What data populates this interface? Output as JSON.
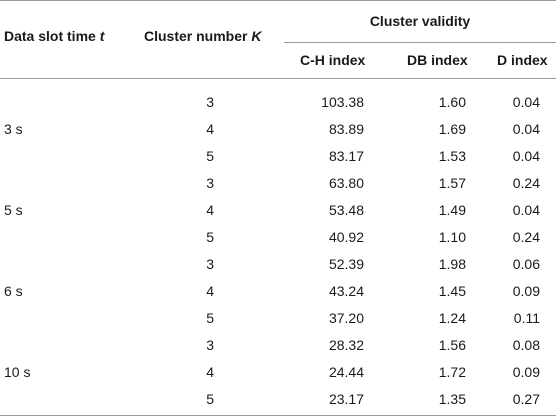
{
  "table": {
    "headers": {
      "data_slot_time": "Data slot time",
      "data_slot_var": "t",
      "cluster_number": "Cluster number",
      "cluster_number_var": "K",
      "cluster_validity": "Cluster validity",
      "ch_index": "C-H index",
      "db_index": "DB index",
      "d_index": "D index"
    },
    "groups": [
      {
        "time": "3 s",
        "rows": [
          {
            "k": "3",
            "ch": "103.38",
            "db": "1.60",
            "d": "0.04"
          },
          {
            "k": "4",
            "ch": "83.89",
            "db": "1.69",
            "d": "0.04"
          },
          {
            "k": "5",
            "ch": "83.17",
            "db": "1.53",
            "d": "0.04"
          }
        ]
      },
      {
        "time": "5 s",
        "rows": [
          {
            "k": "3",
            "ch": "63.80",
            "db": "1.57",
            "d": "0.24"
          },
          {
            "k": "4",
            "ch": "53.48",
            "db": "1.49",
            "d": "0.04"
          },
          {
            "k": "5",
            "ch": "40.92",
            "db": "1.10",
            "d": "0.24"
          }
        ]
      },
      {
        "time": "6 s",
        "rows": [
          {
            "k": "3",
            "ch": "52.39",
            "db": "1.98",
            "d": "0.06"
          },
          {
            "k": "4",
            "ch": "43.24",
            "db": "1.45",
            "d": "0.09"
          },
          {
            "k": "5",
            "ch": "37.20",
            "db": "1.24",
            "d": "0.11"
          }
        ]
      },
      {
        "time": "10 s",
        "rows": [
          {
            "k": "3",
            "ch": "28.32",
            "db": "1.56",
            "d": "0.08"
          },
          {
            "k": "4",
            "ch": "24.44",
            "db": "1.72",
            "d": "0.09"
          },
          {
            "k": "5",
            "ch": "23.17",
            "db": "1.35",
            "d": "0.27"
          }
        ]
      }
    ]
  }
}
